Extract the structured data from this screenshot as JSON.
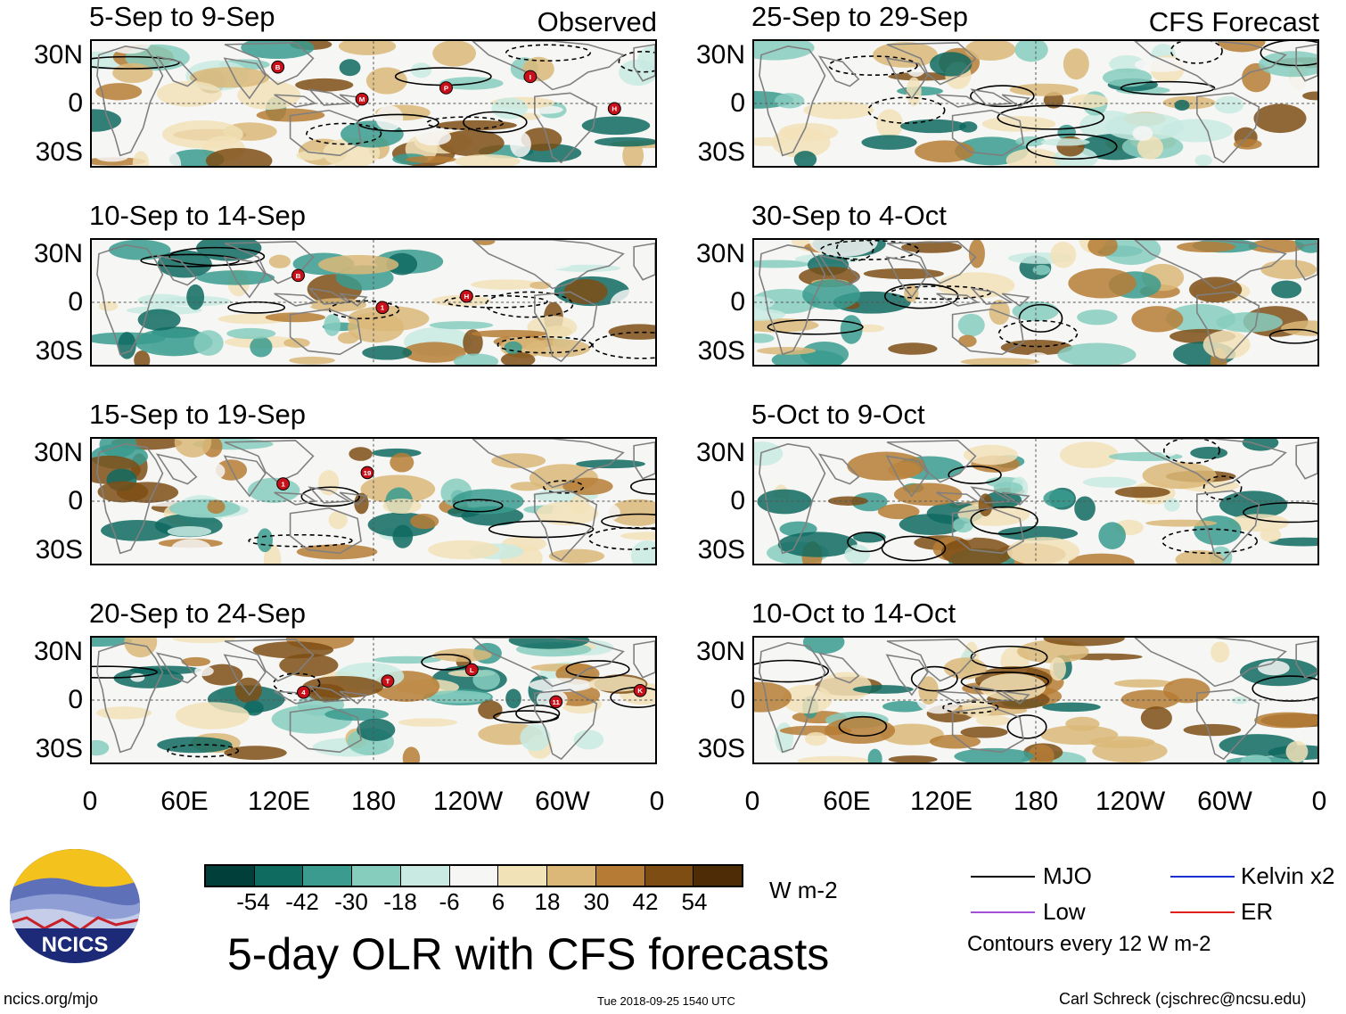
{
  "panels_observed": [
    {
      "period": "5-Sep to 9-Sep",
      "tag": "Observed",
      "storms": [
        "B",
        "M",
        "P",
        "I",
        "H"
      ]
    },
    {
      "period": "10-Sep to 14-Sep",
      "tag": "",
      "storms": [
        "B",
        "1",
        "H"
      ]
    },
    {
      "period": "15-Sep to 19-Sep",
      "tag": "",
      "storms": [
        "1",
        "19"
      ]
    },
    {
      "period": "20-Sep to 24-Sep",
      "tag": "",
      "storms": [
        "4",
        "T",
        "L",
        "11",
        "K"
      ]
    }
  ],
  "panels_forecast": [
    {
      "period": "25-Sep to 29-Sep",
      "tag": "CFS Forecast"
    },
    {
      "period": "30-Sep to 4-Oct",
      "tag": ""
    },
    {
      "period": "5-Oct to 9-Oct",
      "tag": ""
    },
    {
      "period": "10-Oct to 14-Oct",
      "tag": ""
    }
  ],
  "lat_labels": [
    "30N",
    "0",
    "30S"
  ],
  "lon_labels": [
    "0",
    "60E",
    "120E",
    "180",
    "120W",
    "60W",
    "0"
  ],
  "colorbar": {
    "colors": [
      "#01403a",
      "#0f6a60",
      "#3a9b8e",
      "#86cdbe",
      "#c8eae2",
      "#f6f6f4",
      "#f2e2b8",
      "#dbb878",
      "#b67c35",
      "#7e4d14",
      "#4e2c06"
    ],
    "labels": [
      "-54",
      "-42",
      "-30",
      "-18",
      "-6",
      "6",
      "18",
      "30",
      "42",
      "54"
    ],
    "units": "W m-2"
  },
  "title": "5-day OLR with CFS forecasts",
  "logo": {
    "text": "NCICS"
  },
  "legend": {
    "items": [
      {
        "label": "MJO",
        "color": "#000000"
      },
      {
        "label": "Kelvin x2",
        "color": "#1a2fd0"
      },
      {
        "label": "Low",
        "color": "#a34fd6"
      },
      {
        "label": "ER",
        "color": "#e0201b"
      }
    ],
    "note": "Contours every 12 W m-2"
  },
  "footer": {
    "url": "ncics.org/mjo",
    "timestamp": "Tue 2018-09-25 1540 UTC",
    "author": "Carl Schreck (cjschrec@ncsu.edu)"
  }
}
